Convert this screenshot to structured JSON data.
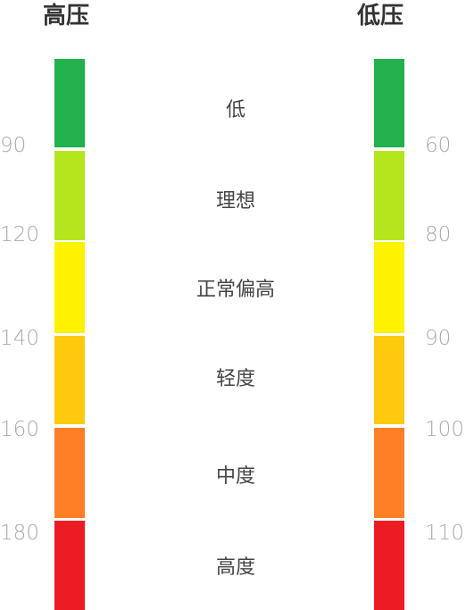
{
  "headings": {
    "systolic": "高压",
    "diastolic": "低压"
  },
  "categories": [
    "低",
    "理想",
    "正常偏高",
    "轻度",
    "中度",
    "高度"
  ],
  "systolic_ticks": [
    "90",
    "120",
    "140",
    "160",
    "180"
  ],
  "diastolic_ticks": [
    "60",
    "80",
    "90",
    "100",
    "110"
  ],
  "colors": [
    "#22b14c",
    "#b5e61d",
    "#fff200",
    "#ffc90e",
    "#ff7f27",
    "#ed1c24"
  ]
}
